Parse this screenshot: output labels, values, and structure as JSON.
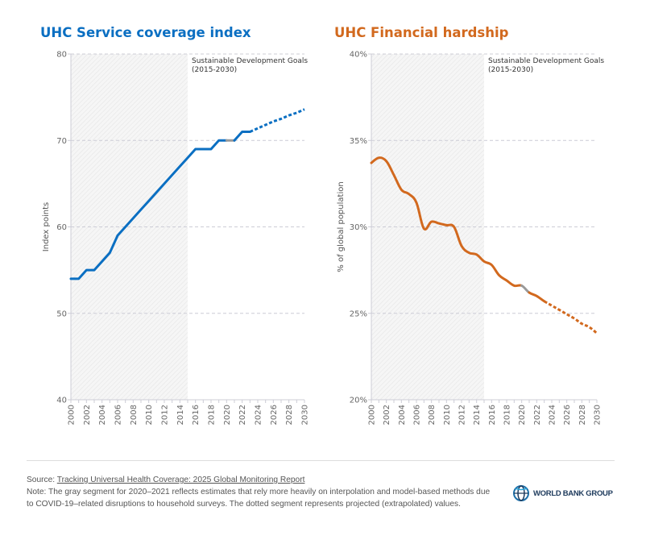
{
  "chart_data": [
    {
      "type": "line",
      "title": "UHC Service coverage index",
      "ylabel": "Index points",
      "color": "#0b6fc2",
      "estimate_color": "#999999",
      "ylim": [
        40,
        80
      ],
      "yticks": [
        "40",
        "50",
        "60",
        "70",
        "80"
      ],
      "ytick_values": [
        40,
        50,
        60,
        70,
        80
      ],
      "xlim": [
        2000,
        2030
      ],
      "xticks": [
        "2000",
        "2002",
        "2004",
        "2006",
        "2008",
        "2010",
        "2012",
        "2014",
        "2016",
        "2018",
        "2020",
        "2022",
        "2024",
        "2026",
        "2028",
        "2030"
      ],
      "grid": true,
      "shaded_period": [
        2000,
        2015
      ],
      "annotation": [
        "Sustainable Development Goals",
        "(2015-2030)"
      ],
      "x": [
        2000,
        2001,
        2002,
        2003,
        2004,
        2005,
        2006,
        2007,
        2008,
        2009,
        2010,
        2011,
        2012,
        2013,
        2014,
        2015,
        2016,
        2017,
        2018,
        2019,
        2020,
        2021,
        2022,
        2023,
        2024,
        2025,
        2026,
        2027,
        2028,
        2029,
        2030
      ],
      "values": [
        54,
        54,
        55,
        55,
        56,
        57,
        59,
        60,
        61,
        62,
        63,
        64,
        65,
        66,
        67,
        68,
        69,
        69,
        69,
        70,
        70,
        70,
        71,
        71,
        71.4,
        71.8,
        72.2,
        72.5,
        72.9,
        73.2,
        73.6
      ],
      "estimate_segment": [
        2020,
        2021
      ],
      "projected_from": 2023
    },
    {
      "type": "line",
      "title": "UHC Financial hardship",
      "ylabel": "% of global population",
      "color": "#d2691e",
      "estimate_color": "#999999",
      "ylim": [
        20,
        40
      ],
      "yticks": [
        "20%",
        "25%",
        "30%",
        "35%",
        "40%"
      ],
      "ytick_values": [
        20,
        25,
        30,
        35,
        40
      ],
      "xlim": [
        2000,
        2030
      ],
      "xticks": [
        "2000",
        "2002",
        "2004",
        "2006",
        "2008",
        "2010",
        "2012",
        "2014",
        "2016",
        "2018",
        "2020",
        "2022",
        "2024",
        "2026",
        "2028",
        "2030"
      ],
      "grid": true,
      "shaded_period": [
        2000,
        2015
      ],
      "annotation": [
        "Sustainable Development Goals",
        "(2015-2030)"
      ],
      "x": [
        2000,
        2001,
        2002,
        2003,
        2004,
        2005,
        2006,
        2007,
        2008,
        2009,
        2010,
        2011,
        2012,
        2013,
        2014,
        2015,
        2016,
        2017,
        2018,
        2019,
        2020,
        2021,
        2022,
        2023,
        2024,
        2025,
        2026,
        2027,
        2028,
        2029,
        2030
      ],
      "values": [
        33.7,
        34.0,
        33.8,
        33.0,
        32.15,
        31.9,
        31.4,
        29.9,
        30.3,
        30.2,
        30.1,
        30.0,
        28.9,
        28.5,
        28.4,
        28.0,
        27.8,
        27.2,
        26.9,
        26.6,
        26.6,
        26.2,
        26.0,
        25.7,
        25.45,
        25.2,
        24.95,
        24.7,
        24.4,
        24.2,
        23.85
      ],
      "estimate_segment": [
        2020,
        2021
      ],
      "projected_from": 2023
    }
  ],
  "footer": {
    "source_label": "Source: ",
    "source_link": "Tracking Universal Health Coverage: 2025 Global Monitoring Report",
    "note": "Note: The gray segment for 2020–2021 reflects estimates that rely more heavily on interpolation and model-based methods due to COVID-19–related disruptions to household surveys. The dotted segment represents projected (extrapolated) values."
  },
  "logo": {
    "text": "WORLD BANK GROUP",
    "color": "#1d3a5c"
  }
}
